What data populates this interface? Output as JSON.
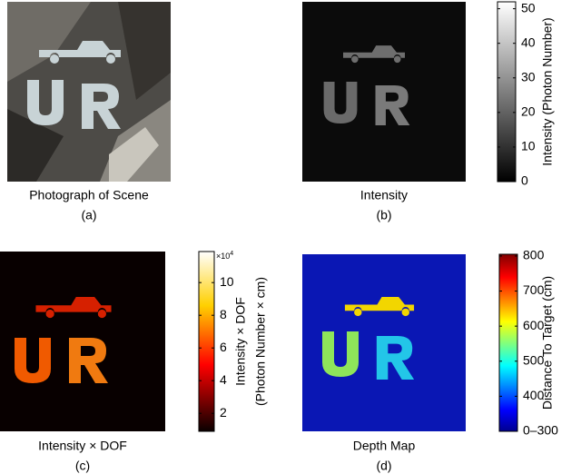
{
  "panels": [
    {
      "caption": "Photograph of Scene",
      "label": "(a)"
    },
    {
      "caption": "Intensity",
      "label": "(b)",
      "colorbar": {
        "label": [
          "Intensity (Photon Number)"
        ],
        "lim": [
          0,
          52
        ],
        "ticks": [
          0,
          10,
          20,
          30,
          40,
          50
        ]
      }
    },
    {
      "caption": "Intensity × DOF",
      "label": "(c)",
      "colorbar": {
        "label": [
          "Intensity × DOF",
          "(Photon Number × cm)"
        ],
        "lim": [
          0.9,
          11.9
        ],
        "ticks": [
          2,
          4,
          6,
          8,
          10
        ],
        "multiplier_base": "×10",
        "multiplier_exponent": "4"
      }
    },
    {
      "caption": "Depth Map",
      "label": "(d)",
      "colorbar": {
        "label": [
          "Distance To Target (cm)"
        ],
        "lim": [
          300,
          805
        ],
        "ticks": [
          {
            "value": 300,
            "label": "0–300"
          },
          400,
          500,
          600,
          700,
          800
        ]
      }
    }
  ]
}
